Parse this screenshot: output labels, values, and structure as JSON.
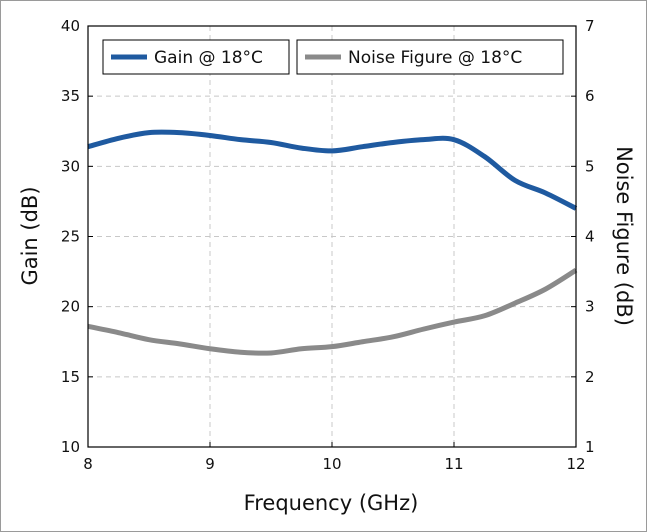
{
  "chart_data": {
    "type": "line",
    "xlabel": "Frequency (GHz)",
    "ylabel": "Gain (dB)",
    "y2label": "Noise Figure (dB)",
    "xlim": [
      8,
      12
    ],
    "ylim": [
      10,
      40
    ],
    "y2lim": [
      1,
      7
    ],
    "xticks": [
      "8",
      "9",
      "10",
      "11",
      "12"
    ],
    "yticks": [
      "10",
      "15",
      "20",
      "25",
      "30",
      "35",
      "40"
    ],
    "y2ticks": [
      "1",
      "2",
      "3",
      "4",
      "5",
      "6",
      "7"
    ],
    "grid": true,
    "legend_position": "top",
    "series": [
      {
        "name": "Gain @ 18°C",
        "axis": "left",
        "color": "#1f5aa0",
        "x": [
          8.0,
          8.25,
          8.5,
          8.75,
          9.0,
          9.25,
          9.5,
          9.75,
          10.0,
          10.25,
          10.5,
          10.75,
          11.0,
          11.25,
          11.5,
          11.75,
          12.0
        ],
        "y": [
          31.4,
          32.0,
          32.4,
          32.4,
          32.2,
          31.9,
          31.7,
          31.3,
          31.1,
          31.4,
          31.7,
          31.9,
          31.9,
          30.7,
          29.0,
          28.1,
          27.0
        ]
      },
      {
        "name": "Noise Figure @ 18°C",
        "axis": "right",
        "color": "#8a8a8a",
        "x": [
          8.0,
          8.25,
          8.5,
          8.75,
          9.0,
          9.25,
          9.5,
          9.75,
          10.0,
          10.25,
          10.5,
          10.75,
          11.0,
          11.25,
          11.5,
          11.75,
          12.0
        ],
        "y": [
          2.72,
          2.63,
          2.53,
          2.47,
          2.4,
          2.35,
          2.34,
          2.4,
          2.43,
          2.5,
          2.57,
          2.68,
          2.78,
          2.87,
          3.05,
          3.25,
          3.52
        ]
      }
    ]
  }
}
